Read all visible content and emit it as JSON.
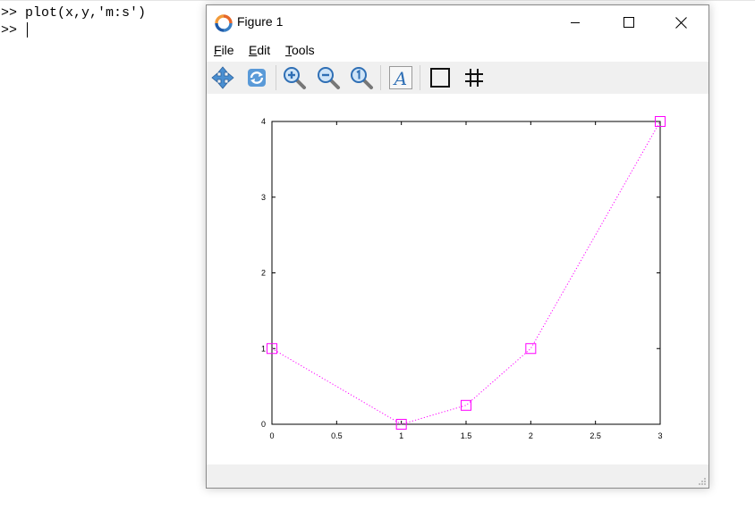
{
  "console": {
    "lines": [
      ">> plot(x,y,'m:s')",
      ">> "
    ]
  },
  "window": {
    "title": "Figure 1",
    "menu": [
      {
        "label": "File",
        "mnemonic": "F",
        "rest": "ile"
      },
      {
        "label": "Edit",
        "mnemonic": "E",
        "rest": "dit"
      },
      {
        "label": "Tools",
        "mnemonic": "T",
        "rest": "ools"
      }
    ],
    "toolbar": [
      "pan-icon",
      "rotate-icon",
      "zoom-in-icon",
      "zoom-out-icon",
      "zoom-reset-icon",
      "text-icon",
      "axes-box-icon",
      "grid-icon"
    ],
    "controls": [
      "minimize-icon",
      "maximize-icon",
      "close-icon"
    ]
  },
  "colors": {
    "series": "#ff00ff",
    "toolbar_bg": "#f0f0f0"
  },
  "chart_data": {
    "type": "line",
    "x": [
      0,
      1,
      1.5,
      2,
      3
    ],
    "series": [
      {
        "values": [
          1,
          0,
          0.25,
          1,
          4
        ],
        "line_style": "dotted",
        "marker": "square",
        "color": "#ff00ff"
      }
    ],
    "xlim": [
      0,
      3
    ],
    "ylim": [
      0,
      4
    ],
    "xticks": [
      0,
      0.5,
      1,
      1.5,
      2,
      2.5,
      3
    ],
    "xtick_labels": [
      "0",
      "0.5",
      "1",
      "1.5",
      "2",
      "2.5",
      "3"
    ],
    "yticks": [
      0,
      1,
      2,
      3,
      4
    ],
    "ytick_labels": [
      "0",
      "1",
      "2",
      "3",
      "4"
    ],
    "title": "",
    "xlabel": "",
    "ylabel": "",
    "grid": false
  }
}
